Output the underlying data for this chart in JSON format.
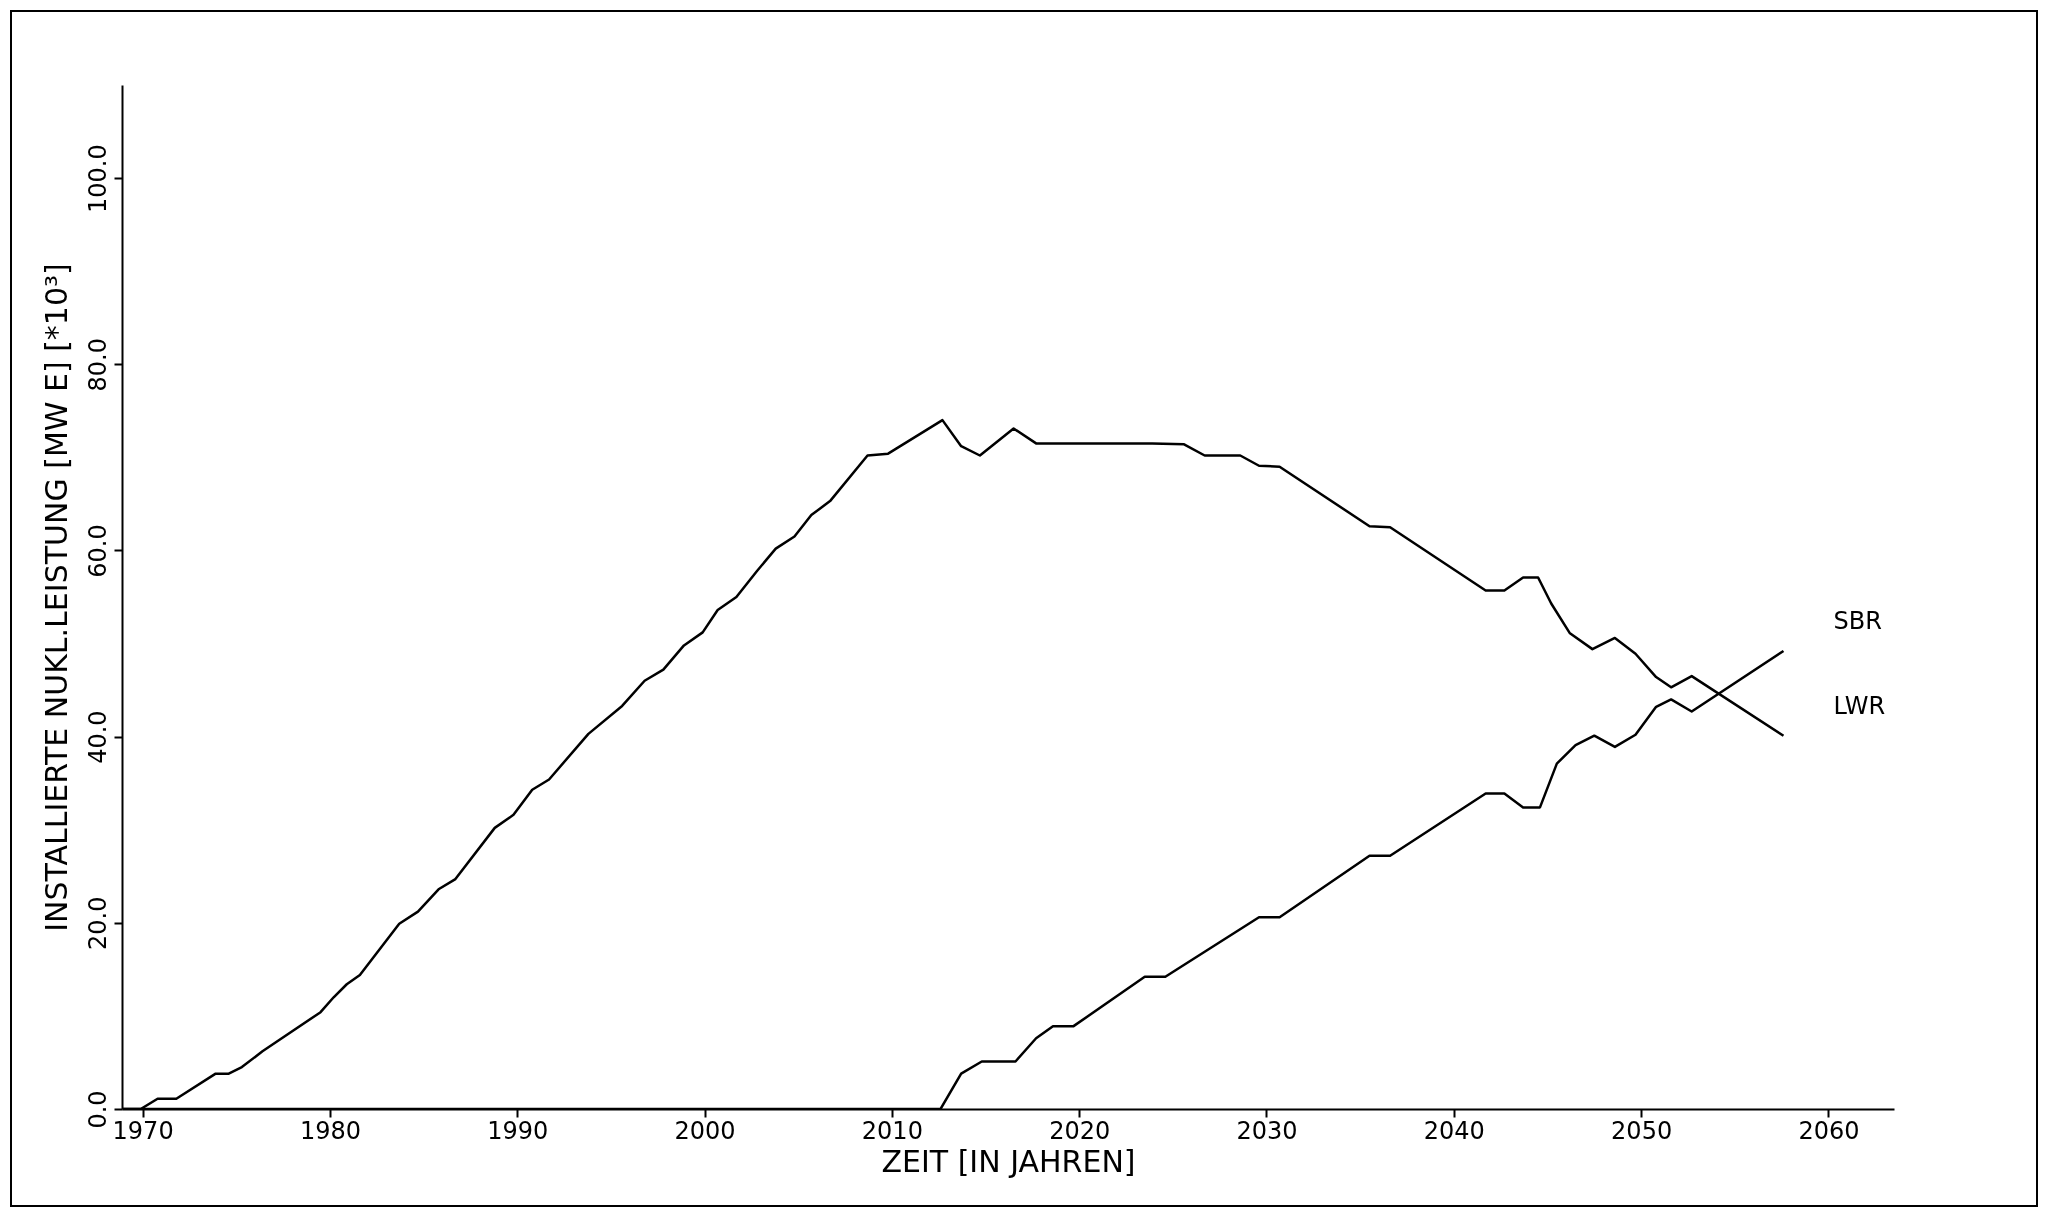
{
  "chart_data": {
    "type": "line",
    "xlabel": "ZEIT [IN JAHREN]",
    "ylabel": "INSTALLIERTE NUKL.LEISTUNG [MW E]      [*10³]",
    "xlim": [
      1968.9,
      2063.5
    ],
    "ylim": [
      0,
      110
    ],
    "xticks": [
      1970,
      1980,
      1990,
      2000,
      2010,
      2020,
      2030,
      2040,
      2050,
      2060
    ],
    "yticks": [
      {
        "value": 0,
        "label": "0.0"
      },
      {
        "value": 20,
        "label": "20.0"
      },
      {
        "value": 40,
        "label": "40.0"
      },
      {
        "value": 60,
        "label": "60.0"
      },
      {
        "value": 80,
        "label": "80.0"
      },
      {
        "value": 100,
        "label": "100.0"
      }
    ],
    "grid": false,
    "marker": "none",
    "line_style": "solid",
    "series": [
      {
        "name": "SBR",
        "color": "#000000",
        "x": [
          1968.9,
          2012.6,
          2013.7,
          2014.8,
          2016.6,
          2017.7,
          2018.6,
          2019.7,
          2023.5,
          2024.6,
          2029.6,
          2030.7,
          2035.5,
          2036.6,
          2041.7,
          2042.7,
          2043.7,
          2044.6,
          2045.5,
          2046.5,
          2047.5,
          2048.6,
          2049.7,
          2050.8,
          2051.6,
          2052.7,
          2057.6
        ],
        "values": [
          0,
          0,
          3.8,
          5.1,
          5.1,
          7.6,
          8.9,
          8.9,
          14.2,
          14.2,
          20.6,
          20.6,
          27.2,
          27.2,
          33.9,
          33.9,
          32.4,
          32.4,
          37.1,
          39.1,
          40.1,
          38.9,
          40.2,
          43.2,
          44,
          42.7,
          49.2
        ]
      },
      {
        "name": "LWR",
        "color": "#000000",
        "x": [
          1968.9,
          1969.9,
          1970.8,
          1971.8,
          1973.9,
          1974.6,
          1975.3,
          1976.4,
          1979.5,
          1980.2,
          1980.9,
          1981.6,
          1983.7,
          1984.7,
          1985.8,
          1986.7,
          1988.8,
          1989.8,
          1990.8,
          1991.7,
          1993.8,
          1995.6,
          1996.8,
          1997.8,
          1998.9,
          1999.9,
          2000.7,
          2001.7,
          2002.8,
          2003.8,
          2004.8,
          2005.7,
          2006.7,
          2008.7,
          2009.8,
          2012.7,
          2013.7,
          2014.7,
          2016.5,
          2017.7,
          2023.9,
          2025.6,
          2026.7,
          2028.6,
          2029.6,
          2030.7,
          2035.5,
          2036.6,
          2041.7,
          2042.7,
          2043.7,
          2044.5,
          2045.2,
          2046.2,
          2047.4,
          2048.6,
          2049.7,
          2050.8,
          2051.6,
          2052.7,
          2057.6
        ],
        "values": [
          0,
          0,
          1.1,
          1.1,
          3.8,
          3.8,
          4.5,
          6.2,
          10.4,
          12,
          13.4,
          14.4,
          19.9,
          21.2,
          23.6,
          24.7,
          30.2,
          31.6,
          34.3,
          35.4,
          40.3,
          43.3,
          46,
          47.2,
          49.8,
          51.2,
          53.6,
          55,
          57.8,
          60.2,
          61.5,
          63.8,
          65.3,
          70.2,
          70.4,
          74,
          71.2,
          70.2,
          73.1,
          71.5,
          71.5,
          71.4,
          70.2,
          70.2,
          69.1,
          69,
          62.6,
          62.5,
          55.7,
          55.7,
          57.1,
          57.1,
          54.3,
          51.1,
          49.4,
          50.6,
          48.9,
          46.4,
          45.3,
          46.5,
          40.1
        ]
      }
    ]
  }
}
